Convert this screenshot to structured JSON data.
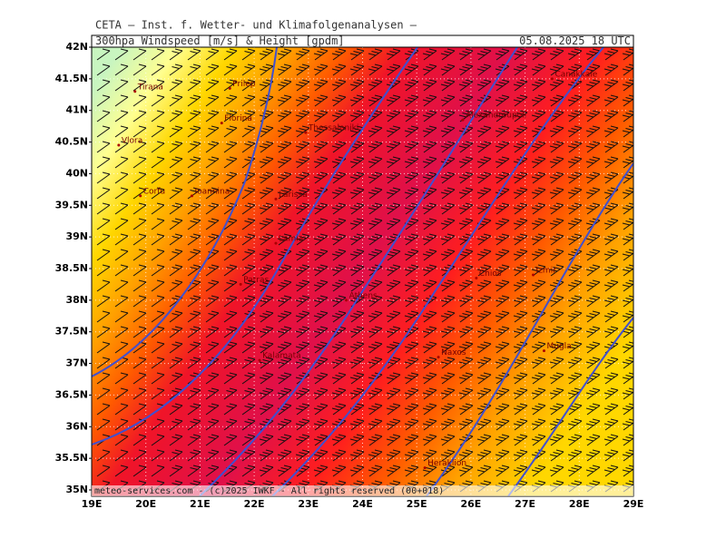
{
  "header": {
    "institute": "CETA — Inst. f. Wetter- und Klimafolgenanalysen —",
    "title": "300hpa Windspeed [m/s] & Height [gpdm]",
    "date": "05.08.2025 18 UTC"
  },
  "lat_labels": [
    "42N",
    "41.5N",
    "41N",
    "40.5N",
    "40N",
    "39.5N",
    "39N",
    "38.5N",
    "38N",
    "37.5N",
    "37N",
    "36.5N",
    "36N",
    "35.5N",
    "35N"
  ],
  "lon_labels": [
    "19E",
    "20E",
    "21E",
    "22E",
    "23E",
    "24E",
    "25E",
    "26E",
    "27E",
    "28E",
    "29E"
  ],
  "cities": [
    {
      "name": "Tirana",
      "lon": 19.8,
      "lat": 41.3
    },
    {
      "name": "Prilep",
      "lon": 21.55,
      "lat": 41.35
    },
    {
      "name": "Florina",
      "lon": 21.4,
      "lat": 40.8
    },
    {
      "name": "Thessaloniki",
      "lon": 22.95,
      "lat": 40.65
    },
    {
      "name": "Vlora",
      "lon": 19.5,
      "lat": 40.45
    },
    {
      "name": "Corfu",
      "lon": 19.9,
      "lat": 39.65
    },
    {
      "name": "Ioannina",
      "lon": 20.85,
      "lat": 39.65
    },
    {
      "name": "Larissa",
      "lon": 22.4,
      "lat": 39.6
    },
    {
      "name": "Lamia",
      "lon": 22.4,
      "lat": 38.9
    },
    {
      "name": "Patras",
      "lon": 21.75,
      "lat": 38.25
    },
    {
      "name": "Athens",
      "lon": 23.7,
      "lat": 38.0
    },
    {
      "name": "Chios",
      "lon": 26.1,
      "lat": 38.35
    },
    {
      "name": "Izmir",
      "lon": 27.15,
      "lat": 38.4
    },
    {
      "name": "Mugla",
      "lon": 27.35,
      "lat": 37.2
    },
    {
      "name": "Kalamata",
      "lon": 22.1,
      "lat": 37.05
    },
    {
      "name": "Naxos",
      "lon": 25.4,
      "lat": 37.1
    },
    {
      "name": "Heraklion",
      "lon": 25.15,
      "lat": 35.35
    },
    {
      "name": "Alexandroupoli",
      "lon": 25.85,
      "lat": 40.85
    },
    {
      "name": "Canakkale",
      "lon": 27.5,
      "lat": 41.5
    }
  ],
  "footer": "meteo-services.com - (c)2025 IWKF - All rights reserved (00+018)"
}
